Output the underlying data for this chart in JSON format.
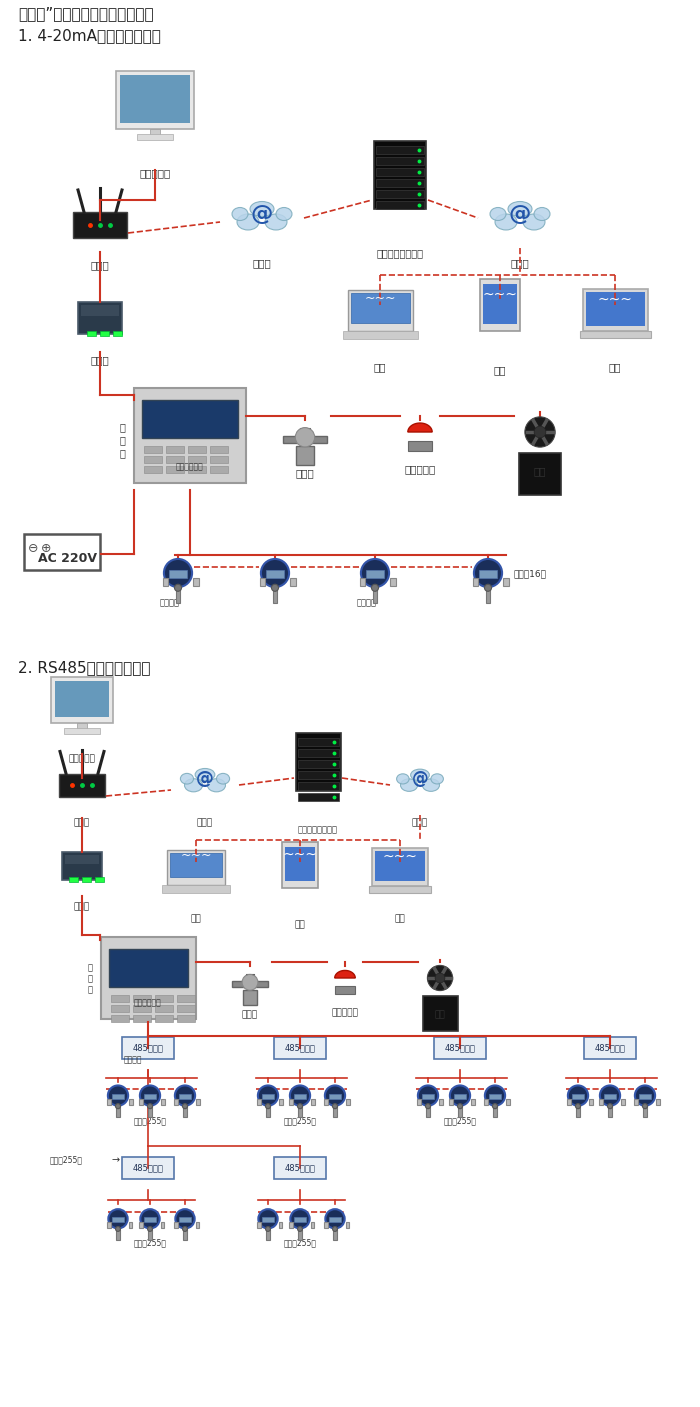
{
  "title1": "机气猫”系列带显示固定式检测仪",
  "section1_title": "1. 4-20mA信号连接系统图",
  "section2_title": "2. RS485信号连接系统图",
  "bg_color": "#ffffff",
  "line_color_red": "#cc3322",
  "text_color": "#333333"
}
